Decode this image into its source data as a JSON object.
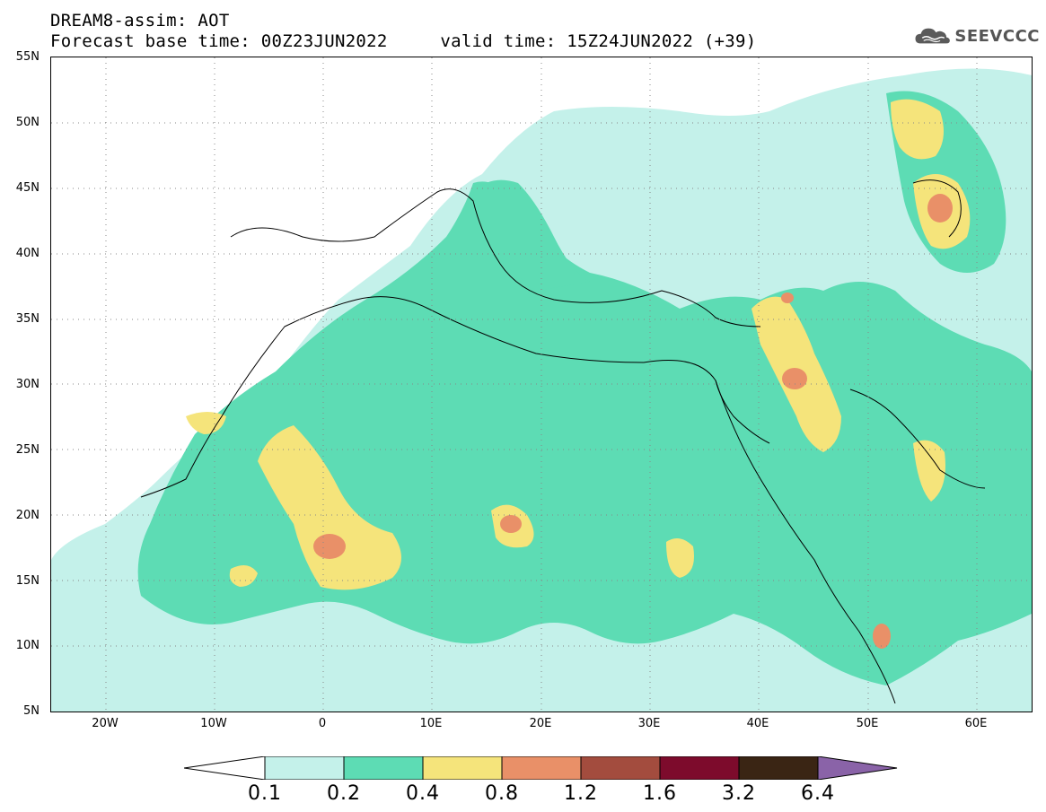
{
  "title": {
    "line1": "DREAM8-assim: AOT",
    "line2": "Forecast base time: 00Z23JUN2022     valid time: 15Z24JUN2022 (+39)"
  },
  "logo": {
    "text": "SEEVCCC",
    "icon": "cloud-icon"
  },
  "map": {
    "lat_labels": [
      "55N",
      "50N",
      "45N",
      "40N",
      "35N",
      "30N",
      "25N",
      "20N",
      "15N",
      "10N",
      "5N"
    ],
    "lon_labels": [
      "20W",
      "10W",
      "0",
      "10E",
      "20E",
      "30E",
      "40E",
      "50E",
      "60E"
    ],
    "lon_range": [
      -25,
      65
    ],
    "lat_range": [
      5,
      55
    ],
    "gridlines": "dotted"
  },
  "colorbar": {
    "labels": [
      "0.1",
      "0.2",
      "0.4",
      "0.8",
      "1.2",
      "1.6",
      "3.2",
      "6.4"
    ],
    "colors": [
      "#ffffff",
      "#c4f1ea",
      "#5ddcb4",
      "#f5e47b",
      "#e99068",
      "#a34c3e",
      "#7d0b2c",
      "#3a2514",
      "#8a63a8"
    ]
  }
}
